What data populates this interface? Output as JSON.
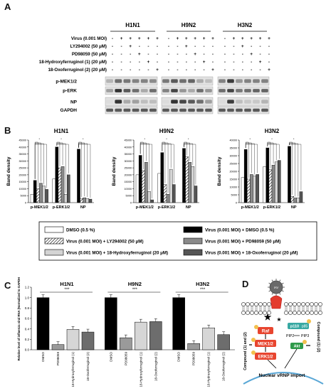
{
  "panels": {
    "a": "A",
    "b": "B",
    "c": "C",
    "d": "D"
  },
  "panel_a": {
    "groups": [
      "H1N1",
      "H9N2",
      "H3N2"
    ],
    "conditions": [
      "Virus (0.001 MOI)",
      "LY294002 (50 μM)",
      "PD98059 (50 μM)",
      "18-Hydroxyferruginol (1) (20 μM)",
      "18-Oxoferruginol (2) (20 μM)"
    ],
    "signs": [
      [
        "-",
        "+",
        "+",
        "+",
        "+",
        "+"
      ],
      [
        "-",
        "-",
        "+",
        "-",
        "-",
        "-"
      ],
      [
        "-",
        "-",
        "-",
        "+",
        "-",
        "-"
      ],
      [
        "-",
        "-",
        "-",
        "-",
        "+",
        "-"
      ],
      [
        "-",
        "-",
        "-",
        "-",
        "-",
        "+"
      ]
    ],
    "bands": [
      "p-MEK1/2",
      "p-ERK",
      "NP",
      "GAPDH"
    ]
  },
  "panel_b": {
    "ylabel": "Band density",
    "groups": [
      "p-MEK1/2",
      "p-ERK1/2",
      "NP"
    ],
    "star": "*",
    "legend": [
      {
        "label": "DMSO (0.5 %)",
        "color": "#ffffff",
        "pattern": "none"
      },
      {
        "label": "Virus (0.001 MOI) + DMSO (0.5 %)",
        "color": "#000000",
        "pattern": "none"
      },
      {
        "label": "Virus (0.001 MOI) + LY294002 (50 μM)",
        "color": "#ffffff",
        "pattern": "hatch"
      },
      {
        "label": "Virus (0.001 MOI) + PD98059 (50 μM)",
        "color": "#8a8a8a",
        "pattern": "none"
      },
      {
        "label": "Virus (0.001 MOI) + 18-Hydroxyferruginol (20 μM)",
        "color": "#d4d4d4",
        "pattern": "none"
      },
      {
        "label": "Virus (0.001 MOI) + 18-Oxoferruginol (20 μM)",
        "color": "#555555",
        "pattern": "none"
      }
    ]
  },
  "panel_c": {
    "ylabel": "Relative level of influenza viral RNA (Normalized to GAPDH)",
    "significance": "***"
  },
  "panel_d": {
    "labels": {
      "virus": "IAV",
      "ras": "Ras",
      "raf": "Raf",
      "mek": "MEK1/2",
      "erk": "ERK1/2",
      "p110": "p110",
      "p85": "p85",
      "pip2": "PIP2",
      "pip3": "PIP3",
      "akt": "Akt",
      "compound_left": "Compound (1) and (2)",
      "compound_right": "Compound (1) (2)",
      "import": "Nuclear vRNP import"
    }
  },
  "chart_data": [
    {
      "type": "bar",
      "title": "H1N1",
      "ylabel": "Band density",
      "ylim": [
        0,
        45000
      ],
      "yticks": [
        "0",
        "5000",
        "10000",
        "15000",
        "20000",
        "25000",
        "30000",
        "35000",
        "40000",
        "45000"
      ],
      "categories": [
        "p-MEK1/2",
        "p-ERK1/2",
        "NP"
      ],
      "series": [
        {
          "name": "DMSO (0.5 %)",
          "values": [
            6000,
            17000,
            0
          ]
        },
        {
          "name": "Virus (0.001 MOI) + DMSO (0.5 %)",
          "values": [
            16000,
            40000,
            38500
          ]
        },
        {
          "name": "Virus (0.001 MOI) + LY294002 (50 μM)",
          "values": [
            10000,
            25000,
            3000
          ]
        },
        {
          "name": "Virus (0.001 MOI) + PD98059 (50 μM)",
          "values": [
            14000,
            26000,
            3500
          ]
        },
        {
          "name": "Virus (0.001 MOI) + 18-Hydroxyferruginol (20 μM)",
          "values": [
            12000,
            6000,
            3000
          ]
        },
        {
          "name": "Virus (0.001 MOI) + 18-Oxoferruginol (20 μM)",
          "values": [
            9500,
            20000,
            2500
          ]
        }
      ]
    },
    {
      "type": "bar",
      "title": "H9N2",
      "ylabel": "Band density",
      "ylim": [
        0,
        45000
      ],
      "yticks": [
        "0",
        "5000",
        "10000",
        "15000",
        "20000",
        "25000",
        "30000",
        "35000",
        "40000",
        "45000"
      ],
      "categories": [
        "p-MEK1/2",
        "p-ERK1/2",
        "NP"
      ],
      "series": [
        {
          "name": "DMSO (0.5 %)",
          "values": [
            20000,
            21000,
            0
          ]
        },
        {
          "name": "Virus (0.001 MOI) + DMSO (0.5 %)",
          "values": [
            34000,
            36000,
            39000
          ]
        },
        {
          "name": "Virus (0.001 MOI) + LY294002 (50 μM)",
          "values": [
            23000,
            13000,
            33000
          ]
        },
        {
          "name": "Virus (0.001 MOI) + PD98059 (50 μM)",
          "values": [
            29000,
            6000,
            29000
          ]
        },
        {
          "name": "Virus (0.001 MOI) + 18-Hydroxyferruginol (20 μM)",
          "values": [
            8000,
            24000,
            26000
          ]
        },
        {
          "name": "Virus (0.001 MOI) + 18-Oxoferruginol (20 μM)",
          "values": [
            2000,
            13000,
            12000
          ]
        }
      ]
    },
    {
      "type": "bar",
      "title": "H3N2",
      "ylabel": "Band density",
      "ylim": [
        0,
        40000
      ],
      "yticks": [
        "0",
        "5000",
        "10000",
        "15000",
        "20000",
        "25000",
        "30000",
        "35000",
        "40000"
      ],
      "categories": [
        "p-MEK1/2",
        "p-ERK1/2",
        "NP"
      ],
      "series": [
        {
          "name": "DMSO (0.5 %)",
          "values": [
            16000,
            23000,
            0
          ]
        },
        {
          "name": "Virus (0.001 MOI) + DMSO (0.5 %)",
          "values": [
            34000,
            35000,
            36000
          ]
        },
        {
          "name": "Virus (0.001 MOI) + LY294002 (50 μM)",
          "values": [
            15000,
            21000,
            4000
          ]
        },
        {
          "name": "Virus (0.001 MOI) + PD98059 (50 μM)",
          "values": [
            18000,
            24000,
            3000
          ]
        },
        {
          "name": "Virus (0.001 MOI) + 18-Hydroxyferruginol (20 μM)",
          "values": [
            17000,
            26000,
            3000
          ]
        },
        {
          "name": "Virus (0.001 MOI) + 18-Oxoferruginol (20 μM)",
          "values": [
            18000,
            27000,
            7000
          ]
        }
      ]
    },
    {
      "type": "bar",
      "title": "",
      "ylabel": "Relative level of influenza viral RNA (Normalized to GAPDH)",
      "ylim": [
        0,
        1.2
      ],
      "yticks": [
        "0.0",
        "0.2",
        "0.4",
        "0.6",
        "0.8",
        "1.0",
        "1.2"
      ],
      "groups": [
        "H1N1",
        "H9N2",
        "H3N2"
      ],
      "categories": [
        "DMSO",
        "PD98059",
        "18-Hydroxyferruginol (1)",
        "18-Oxoferruginol (2)"
      ],
      "series": [
        {
          "name": "H1N1",
          "values": [
            1.0,
            0.1,
            0.39,
            0.34
          ]
        },
        {
          "name": "H9N2",
          "values": [
            1.0,
            0.23,
            0.53,
            0.54
          ]
        },
        {
          "name": "H3N2",
          "values": [
            1.0,
            0.12,
            0.42,
            0.29
          ]
        }
      ]
    }
  ]
}
